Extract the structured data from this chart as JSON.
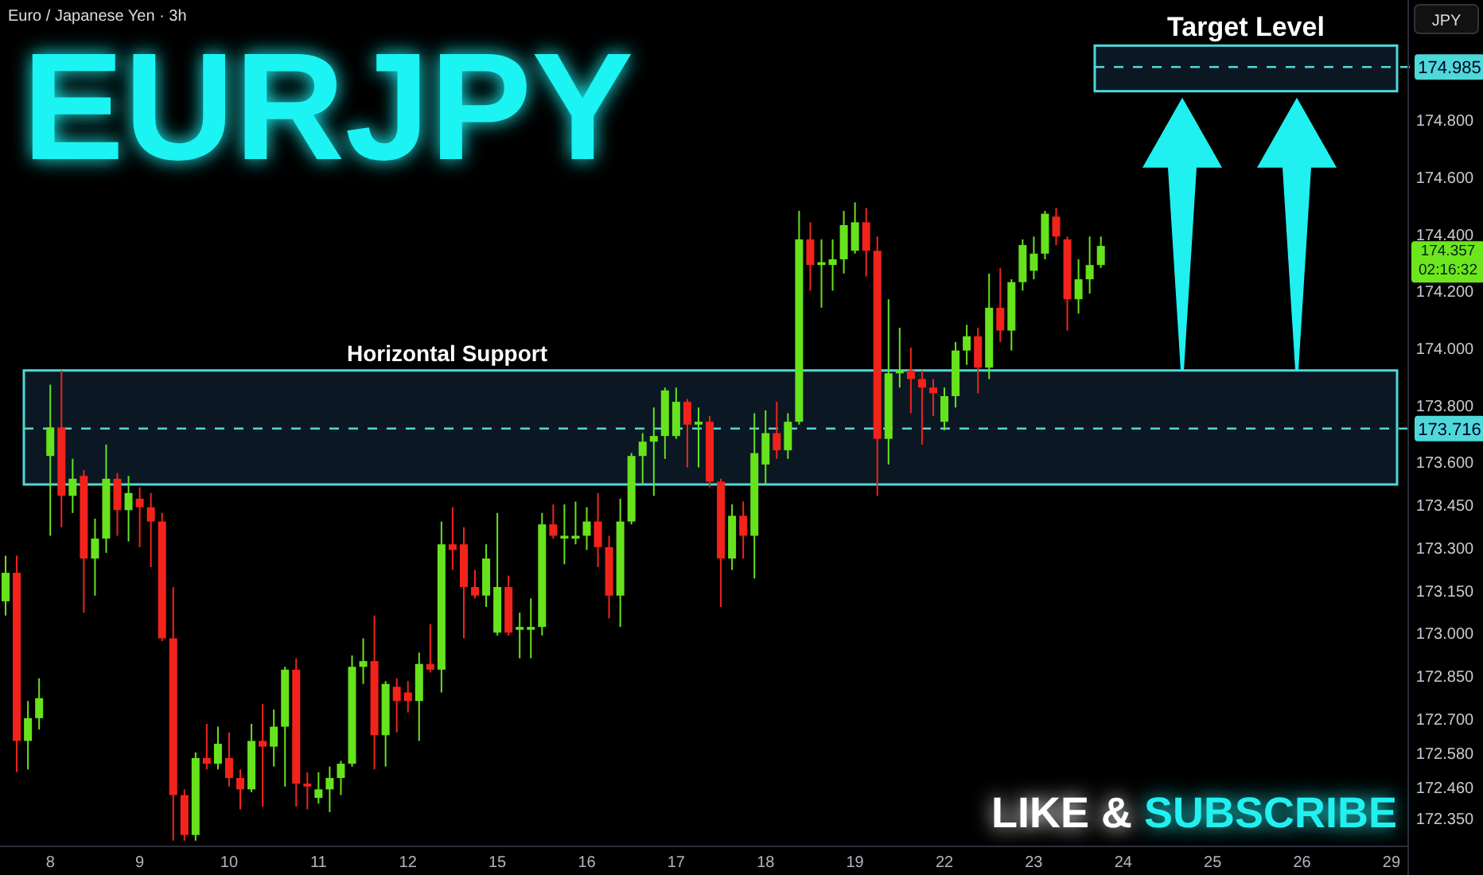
{
  "chart_data": {
    "type": "candlestick",
    "title": "EURJPY",
    "subtitle": "Euro / Japanese Yen · 3h",
    "ylabel": "JPY",
    "categories": [
      null,
      null,
      null,
      null,
      "8",
      null,
      null,
      null,
      null,
      null,
      null,
      null,
      "9",
      null,
      null,
      null,
      null,
      null,
      null,
      null,
      "10",
      null,
      null,
      null,
      null,
      null,
      null,
      null,
      "11",
      null,
      null,
      null,
      null,
      null,
      null,
      null,
      "12",
      null,
      null,
      null,
      null,
      null,
      null,
      null,
      "15",
      null,
      null,
      null,
      null,
      null,
      null,
      null,
      "16",
      null,
      null,
      null,
      null,
      null,
      null,
      null,
      "17",
      null,
      null,
      null,
      null,
      null,
      null,
      null,
      "18",
      null,
      null,
      null,
      null,
      null,
      null,
      null,
      "19",
      null,
      null,
      null,
      null,
      null,
      null,
      null,
      "22",
      null,
      null,
      null,
      null,
      null,
      null,
      null,
      "23",
      null,
      null,
      null,
      null,
      null,
      null,
      null,
      "24",
      null,
      null,
      null,
      null,
      null,
      null,
      null,
      "25",
      null,
      null,
      null,
      null,
      null,
      null,
      null,
      "26",
      null,
      null,
      null,
      null,
      null,
      null,
      null,
      "29",
      null
    ],
    "ohlc": [
      [
        173.11,
        173.27,
        173.06,
        173.21
      ],
      [
        173.21,
        173.27,
        172.51,
        172.62
      ],
      [
        172.62,
        172.76,
        172.52,
        172.7
      ],
      [
        172.7,
        172.84,
        172.66,
        172.77
      ],
      [
        173.62,
        173.87,
        173.34,
        173.72
      ],
      [
        173.72,
        173.92,
        173.37,
        173.48
      ],
      [
        173.48,
        173.61,
        173.42,
        173.54
      ],
      [
        173.55,
        173.57,
        173.07,
        173.26
      ],
      [
        173.26,
        173.4,
        173.13,
        173.33
      ],
      [
        173.33,
        173.66,
        173.28,
        173.54
      ],
      [
        173.54,
        173.56,
        173.34,
        173.43
      ],
      [
        173.43,
        173.55,
        173.32,
        173.49
      ],
      [
        173.47,
        173.51,
        173.3,
        173.44
      ],
      [
        173.44,
        173.49,
        173.23,
        173.39
      ],
      [
        173.39,
        173.42,
        172.97,
        172.98
      ],
      [
        172.98,
        173.16,
        172.27,
        172.43
      ],
      [
        172.43,
        172.45,
        172.27,
        172.29
      ],
      [
        172.29,
        172.58,
        172.27,
        172.56
      ],
      [
        172.56,
        172.68,
        172.52,
        172.54
      ],
      [
        172.54,
        172.67,
        172.52,
        172.61
      ],
      [
        172.56,
        172.65,
        172.46,
        172.49
      ],
      [
        172.49,
        172.52,
        172.38,
        172.45
      ],
      [
        172.45,
        172.68,
        172.44,
        172.62
      ],
      [
        172.62,
        172.75,
        172.39,
        172.6
      ],
      [
        172.6,
        172.73,
        172.53,
        172.67
      ],
      [
        172.67,
        172.88,
        172.46,
        172.87
      ],
      [
        172.87,
        172.91,
        172.39,
        172.47
      ],
      [
        172.47,
        172.51,
        172.38,
        172.46
      ],
      [
        172.42,
        172.51,
        172.4,
        172.45
      ],
      [
        172.45,
        172.53,
        172.37,
        172.49
      ],
      [
        172.49,
        172.55,
        172.43,
        172.54
      ],
      [
        172.54,
        172.92,
        172.53,
        172.88
      ],
      [
        172.88,
        172.98,
        172.82,
        172.9
      ],
      [
        172.9,
        173.06,
        172.52,
        172.64
      ],
      [
        172.64,
        172.83,
        172.53,
        172.82
      ],
      [
        172.81,
        172.84,
        172.65,
        172.76
      ],
      [
        172.79,
        172.83,
        172.72,
        172.76
      ],
      [
        172.76,
        172.93,
        172.62,
        172.89
      ],
      [
        172.89,
        173.03,
        172.86,
        172.87
      ],
      [
        172.87,
        173.39,
        172.79,
        173.31
      ],
      [
        173.31,
        173.44,
        173.22,
        173.29
      ],
      [
        173.31,
        173.37,
        172.98,
        173.16
      ],
      [
        173.16,
        173.22,
        173.12,
        173.13
      ],
      [
        173.13,
        173.31,
        173.09,
        173.26
      ],
      [
        173.0,
        173.42,
        172.99,
        173.16
      ],
      [
        173.16,
        173.2,
        172.99,
        173.0
      ],
      [
        173.01,
        173.07,
        172.91,
        173.02
      ],
      [
        173.01,
        173.12,
        172.91,
        173.02
      ],
      [
        173.02,
        173.42,
        172.99,
        173.38
      ],
      [
        173.38,
        173.45,
        173.33,
        173.34
      ],
      [
        173.33,
        173.45,
        173.24,
        173.34
      ],
      [
        173.33,
        173.46,
        173.31,
        173.34
      ],
      [
        173.34,
        173.44,
        173.29,
        173.39
      ],
      [
        173.39,
        173.49,
        173.23,
        173.3
      ],
      [
        173.3,
        173.34,
        173.05,
        173.13
      ],
      [
        173.13,
        173.47,
        173.02,
        173.39
      ],
      [
        173.39,
        173.63,
        173.38,
        173.62
      ],
      [
        173.62,
        173.7,
        173.52,
        173.67
      ],
      [
        173.67,
        173.79,
        173.48,
        173.69
      ],
      [
        173.69,
        173.86,
        173.61,
        173.85
      ],
      [
        173.69,
        173.86,
        173.68,
        173.81
      ],
      [
        173.81,
        173.82,
        173.58,
        173.73
      ],
      [
        173.73,
        173.79,
        173.58,
        173.74
      ],
      [
        173.74,
        173.76,
        173.51,
        173.53
      ],
      [
        173.53,
        173.54,
        173.09,
        173.26
      ],
      [
        173.26,
        173.45,
        173.22,
        173.41
      ],
      [
        173.41,
        173.46,
        173.26,
        173.34
      ],
      [
        173.34,
        173.77,
        173.19,
        173.63
      ],
      [
        173.59,
        173.78,
        173.52,
        173.7
      ],
      [
        173.7,
        173.81,
        173.61,
        173.64
      ],
      [
        173.64,
        173.77,
        173.61,
        173.74
      ],
      [
        173.74,
        174.48,
        173.73,
        174.38
      ],
      [
        174.38,
        174.44,
        174.2,
        174.29
      ],
      [
        174.29,
        174.38,
        174.14,
        174.3
      ],
      [
        174.29,
        174.38,
        174.2,
        174.31
      ],
      [
        174.31,
        174.48,
        174.26,
        174.43
      ],
      [
        174.34,
        174.51,
        174.33,
        174.44
      ],
      [
        174.44,
        174.49,
        174.25,
        174.34
      ],
      [
        174.34,
        174.39,
        173.48,
        173.68
      ],
      [
        173.68,
        174.17,
        173.59,
        173.91
      ],
      [
        173.91,
        174.07,
        173.86,
        173.92
      ],
      [
        173.92,
        174.0,
        173.77,
        173.89
      ],
      [
        173.89,
        173.92,
        173.66,
        173.86
      ],
      [
        173.86,
        173.89,
        173.76,
        173.84
      ],
      [
        173.74,
        173.86,
        173.71,
        173.83
      ],
      [
        173.83,
        174.02,
        173.79,
        173.99
      ],
      [
        173.99,
        174.08,
        173.94,
        174.04
      ],
      [
        174.04,
        174.07,
        173.84,
        173.93
      ],
      [
        173.93,
        174.26,
        173.89,
        174.14
      ],
      [
        174.14,
        174.28,
        174.02,
        174.06
      ],
      [
        174.06,
        174.24,
        173.99,
        174.23
      ],
      [
        174.23,
        174.38,
        174.2,
        174.36
      ],
      [
        174.27,
        174.39,
        174.24,
        174.33
      ],
      [
        174.33,
        174.48,
        174.31,
        174.47
      ],
      [
        174.46,
        174.49,
        174.36,
        174.39
      ],
      [
        174.38,
        174.39,
        174.06,
        174.17
      ],
      [
        174.17,
        174.31,
        174.12,
        174.24
      ],
      [
        174.24,
        174.39,
        174.19,
        174.29
      ],
      [
        174.29,
        174.39,
        174.28,
        174.357
      ],
      null,
      null,
      null,
      null,
      null,
      null,
      null,
      null,
      null,
      null,
      null,
      null,
      null,
      null,
      null,
      null,
      null,
      null,
      null,
      null,
      null,
      null,
      null,
      null,
      null,
      null,
      null
    ],
    "colors": [
      "#66e31c",
      "#f2231b",
      "#66e31c",
      "#66e31c",
      "#66e31c",
      "#f2231b",
      "#66e31c",
      "#f2231b",
      "#66e31c",
      "#66e31c",
      "#f2231b",
      "#66e31c",
      "#f2231b",
      "#f2231b",
      "#f2231b",
      "#f2231b",
      "#f2231b",
      "#66e31c",
      "#f2231b",
      "#66e31c",
      "#f2231b",
      "#f2231b",
      "#66e31c",
      "#f2231b",
      "#66e31c",
      "#66e31c",
      "#f2231b",
      "#f2231b",
      "#66e31c",
      "#66e31c",
      "#66e31c",
      "#66e31c",
      "#66e31c",
      "#f2231b",
      "#66e31c",
      "#f2231b",
      "#f2231b",
      "#66e31c",
      "#f2231b",
      "#66e31c",
      "#f2231b",
      "#f2231b",
      "#f2231b",
      "#66e31c",
      "#66e31c",
      "#f2231b",
      "#66e31c",
      "#66e31c",
      "#66e31c",
      "#f2231b",
      "#66e31c",
      "#66e31c",
      "#66e31c",
      "#f2231b",
      "#f2231b",
      "#66e31c",
      "#66e31c",
      "#66e31c",
      "#66e31c",
      "#66e31c",
      "#66e31c",
      "#f2231b",
      "#66e31c",
      "#f2231b",
      "#f2231b",
      "#66e31c",
      "#f2231b",
      "#66e31c",
      "#66e31c",
      "#f2231b",
      "#66e31c",
      "#66e31c",
      "#f2231b",
      "#66e31c",
      "#66e31c",
      "#66e31c",
      "#66e31c",
      "#f2231b",
      "#f2231b",
      "#66e31c",
      "#66e31c",
      "#f2231b",
      "#f2231b",
      "#f2231b",
      "#66e31c",
      "#66e31c",
      "#66e31c",
      "#f2231b",
      "#66e31c",
      "#f2231b",
      "#66e31c",
      "#66e31c",
      "#66e31c",
      "#66e31c",
      "#f2231b",
      "#f2231b",
      "#66e31c",
      "#66e31c",
      "#66e31c",
      null,
      null,
      null,
      null,
      null,
      null,
      null,
      null,
      null,
      null,
      null,
      null,
      null,
      null,
      null,
      null,
      null,
      null,
      null,
      null,
      null,
      null,
      null,
      null,
      null,
      null,
      null
    ],
    "ylim": [
      172.25,
      175.22
    ],
    "yticks": [
      {
        "value": 174.8,
        "label": "174.800"
      },
      {
        "value": 174.6,
        "label": "174.600"
      },
      {
        "value": 174.4,
        "label": "174.400"
      },
      {
        "value": 174.2,
        "label": "174.200"
      },
      {
        "value": 174,
        "label": "174.000"
      },
      {
        "value": 173.8,
        "label": "173.800"
      },
      {
        "value": 173.6,
        "label": "173.600"
      },
      {
        "value": 173.45,
        "label": "173.450"
      },
      {
        "value": 173.3,
        "label": "173.300"
      },
      {
        "value": 173.15,
        "label": "173.150"
      },
      {
        "value": 173,
        "label": "173.000"
      },
      {
        "value": 172.85,
        "label": "172.850"
      },
      {
        "value": 172.7,
        "label": "172.700"
      },
      {
        "value": 172.58,
        "label": "172.580"
      },
      {
        "value": 172.46,
        "label": "172.460"
      },
      {
        "value": 172.35,
        "label": "172.350"
      }
    ],
    "ref_lines": [
      {
        "axis": "y",
        "value": 174.985,
        "label": "174.985",
        "color": "#4fd8d8",
        "line_style": "dashed"
      },
      {
        "axis": "y",
        "value": 173.716,
        "label": "173.716",
        "color": "#4fd8d8",
        "line_style": "dashed"
      }
    ],
    "bands": [
      {
        "axis": "y",
        "from": 173.52,
        "to": 173.92,
        "label": "Horizontal Support",
        "color": "#4fd8d8"
      },
      {
        "axis": "y",
        "from": 174.9,
        "to": 175.06,
        "label": "Target Level",
        "color": "#4fd8d8"
      }
    ],
    "annotations": [
      "LIKE & SUBSCRIBE",
      "174.357\n02:16:32"
    ]
  }
}
